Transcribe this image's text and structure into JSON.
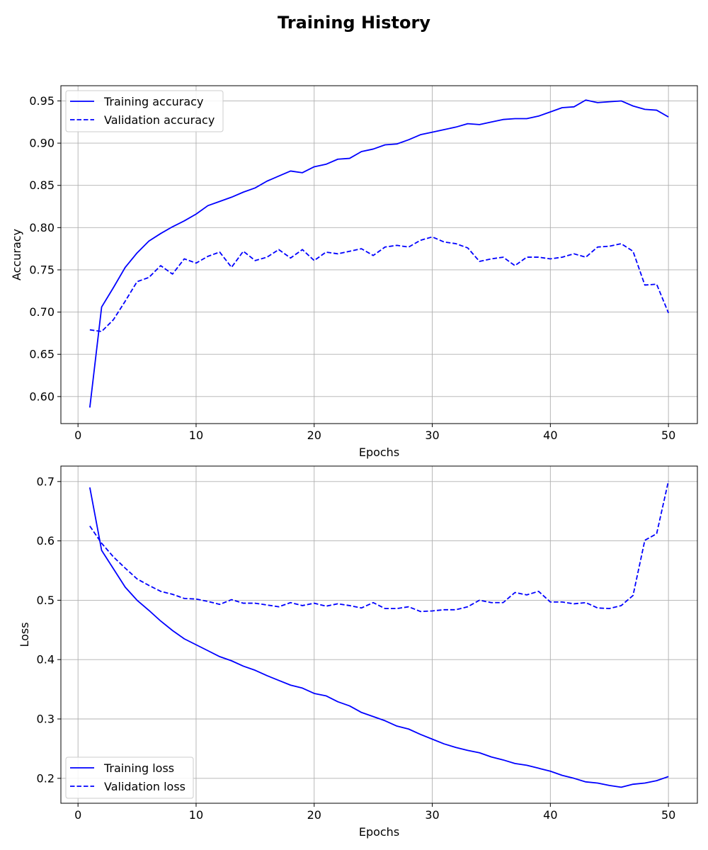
{
  "figure_title": "Training History",
  "chart_data": [
    {
      "type": "line",
      "title": "",
      "xlabel": "Epochs",
      "ylabel": "Accuracy",
      "xlim": [
        -1.45,
        52.45
      ],
      "ylim": [
        0.568,
        0.968
      ],
      "xticks": [
        0,
        10,
        20,
        30,
        40,
        50
      ],
      "yticks": [
        0.6,
        0.65,
        0.7,
        0.75,
        0.8,
        0.85,
        0.9,
        0.95
      ],
      "ytick_labels": [
        "0.60",
        "0.65",
        "0.70",
        "0.75",
        "0.80",
        "0.85",
        "0.90",
        "0.95"
      ],
      "grid": true,
      "legend": "upper-left",
      "color": "#0000ff",
      "x": [
        1,
        2,
        3,
        4,
        5,
        6,
        7,
        8,
        9,
        10,
        11,
        12,
        13,
        14,
        15,
        16,
        17,
        18,
        19,
        20,
        21,
        22,
        23,
        24,
        25,
        26,
        27,
        28,
        29,
        30,
        31,
        32,
        33,
        34,
        35,
        36,
        37,
        38,
        39,
        40,
        41,
        42,
        43,
        44,
        45,
        46,
        47,
        48,
        49,
        50
      ],
      "series": [
        {
          "name": "Training accuracy",
          "style": "solid",
          "values": [
            0.587,
            0.706,
            0.729,
            0.753,
            0.77,
            0.784,
            0.793,
            0.801,
            0.808,
            0.816,
            0.826,
            0.831,
            0.836,
            0.842,
            0.847,
            0.855,
            0.861,
            0.867,
            0.865,
            0.872,
            0.875,
            0.881,
            0.882,
            0.89,
            0.893,
            0.898,
            0.899,
            0.904,
            0.91,
            0.913,
            0.916,
            0.919,
            0.923,
            0.922,
            0.925,
            0.928,
            0.929,
            0.929,
            0.932,
            0.937,
            0.942,
            0.943,
            0.951,
            0.948,
            0.949,
            0.95,
            0.944,
            0.94,
            0.939,
            0.931
          ]
        },
        {
          "name": "Validation accuracy",
          "style": "dashed",
          "values": [
            0.679,
            0.677,
            0.691,
            0.713,
            0.736,
            0.741,
            0.755,
            0.745,
            0.763,
            0.758,
            0.766,
            0.771,
            0.753,
            0.772,
            0.761,
            0.765,
            0.774,
            0.764,
            0.774,
            0.761,
            0.771,
            0.769,
            0.772,
            0.775,
            0.767,
            0.777,
            0.779,
            0.777,
            0.785,
            0.789,
            0.783,
            0.781,
            0.776,
            0.76,
            0.763,
            0.765,
            0.755,
            0.765,
            0.765,
            0.763,
            0.765,
            0.769,
            0.765,
            0.777,
            0.778,
            0.781,
            0.772,
            0.732,
            0.733,
            0.699
          ]
        }
      ]
    },
    {
      "type": "line",
      "title": "",
      "xlabel": "Epochs",
      "ylabel": "Loss",
      "xlim": [
        -1.45,
        52.45
      ],
      "ylim": [
        0.158,
        0.726
      ],
      "xticks": [
        0,
        10,
        20,
        30,
        40,
        50
      ],
      "yticks": [
        0.2,
        0.3,
        0.4,
        0.5,
        0.6,
        0.7
      ],
      "ytick_labels": [
        "0.2",
        "0.3",
        "0.4",
        "0.5",
        "0.6",
        "0.7"
      ],
      "grid": true,
      "legend": "lower-left",
      "color": "#0000ff",
      "x": [
        1,
        2,
        3,
        4,
        5,
        6,
        7,
        8,
        9,
        10,
        11,
        12,
        13,
        14,
        15,
        16,
        17,
        18,
        19,
        20,
        21,
        22,
        23,
        24,
        25,
        26,
        27,
        28,
        29,
        30,
        31,
        32,
        33,
        34,
        35,
        36,
        37,
        38,
        39,
        40,
        41,
        42,
        43,
        44,
        45,
        46,
        47,
        48,
        49,
        50
      ],
      "series": [
        {
          "name": "Training loss",
          "style": "solid",
          "values": [
            0.69,
            0.584,
            0.553,
            0.522,
            0.5,
            0.483,
            0.465,
            0.449,
            0.435,
            0.425,
            0.415,
            0.405,
            0.398,
            0.389,
            0.382,
            0.373,
            0.365,
            0.357,
            0.352,
            0.343,
            0.339,
            0.329,
            0.322,
            0.311,
            0.304,
            0.297,
            0.288,
            0.283,
            0.274,
            0.266,
            0.258,
            0.252,
            0.247,
            0.243,
            0.236,
            0.231,
            0.225,
            0.222,
            0.217,
            0.212,
            0.205,
            0.2,
            0.194,
            0.192,
            0.188,
            0.185,
            0.19,
            0.192,
            0.196,
            0.203
          ]
        },
        {
          "name": "Validation loss",
          "style": "dashed",
          "values": [
            0.625,
            0.596,
            0.573,
            0.554,
            0.536,
            0.525,
            0.515,
            0.51,
            0.503,
            0.502,
            0.498,
            0.493,
            0.501,
            0.495,
            0.495,
            0.492,
            0.489,
            0.496,
            0.491,
            0.495,
            0.49,
            0.494,
            0.491,
            0.487,
            0.496,
            0.486,
            0.486,
            0.489,
            0.481,
            0.482,
            0.484,
            0.484,
            0.489,
            0.5,
            0.496,
            0.496,
            0.513,
            0.509,
            0.515,
            0.497,
            0.497,
            0.494,
            0.496,
            0.487,
            0.486,
            0.491,
            0.508,
            0.601,
            0.612,
            0.701
          ]
        }
      ]
    }
  ]
}
